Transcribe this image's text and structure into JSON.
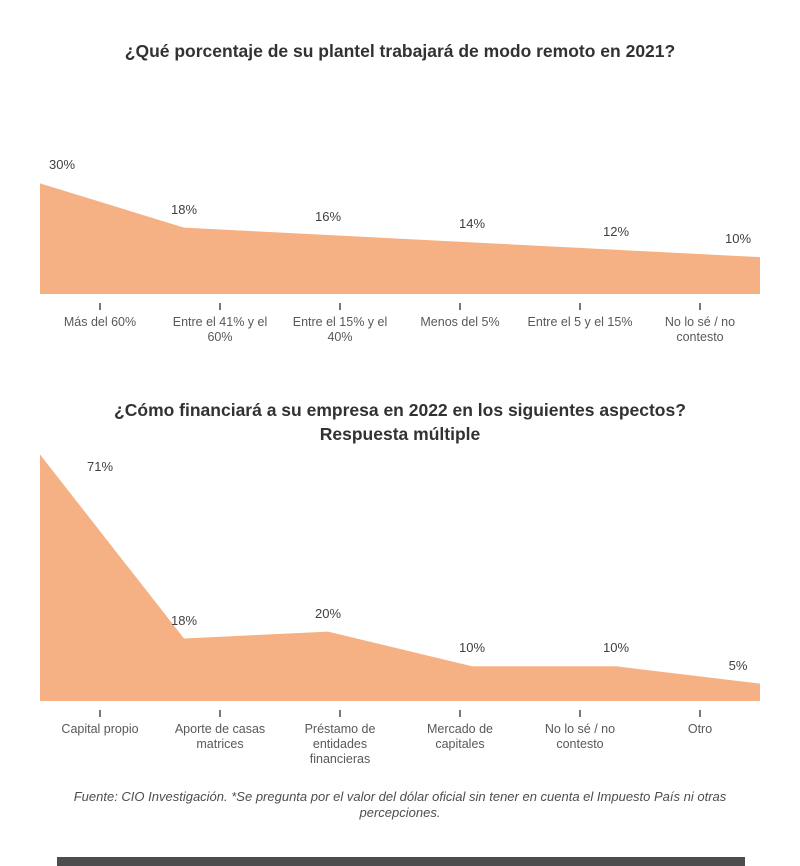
{
  "page": {
    "background": "#ffffff",
    "accent_color": "#F5B183",
    "title_color": "#323232",
    "value_label_color": "#414042",
    "category_label_color": "#58595B",
    "footer_note": "Fuente: CIO Investigación. *Se pregunta por el valor del dólar oficial sin tener en cuenta el Impuesto País ni otras percepciones."
  },
  "chart_data": [
    {
      "type": "area",
      "title": "¿Qué porcentaje de su plantel trabajará de modo remoto en 2021?",
      "categories": [
        "Más del 60%",
        "Entre el 41% y el 60%",
        "Entre el 15% y el 40%",
        "Menos del 5%",
        "Entre el 5 y el 15%",
        "No lo sé / no contesto"
      ],
      "values": [
        30,
        18,
        16,
        14,
        12,
        10
      ],
      "value_labels": [
        "30%",
        "18%",
        "16%",
        "14%",
        "12%",
        "10%"
      ],
      "xlabel": "",
      "ylabel": "",
      "ylim": [
        0,
        32
      ],
      "grid": false,
      "legend": false
    },
    {
      "type": "area",
      "title": "¿Cómo financiará a su empresa en 2022 en los siguientes aspectos?",
      "subtitle": "Respuesta múltiple",
      "categories": [
        "Capital propio",
        "Aporte de casas matrices",
        "Préstamo de entidades financieras",
        "Mercado de capitales",
        "No lo sé / no contesto",
        "Otro"
      ],
      "values": [
        71,
        18,
        20,
        10,
        10,
        5
      ],
      "value_labels": [
        "71%",
        "18%",
        "20%",
        "10%",
        "10%",
        "5%"
      ],
      "xlabel": "",
      "ylabel": "",
      "ylim": [
        0,
        72
      ],
      "grid": false,
      "legend": false
    }
  ]
}
